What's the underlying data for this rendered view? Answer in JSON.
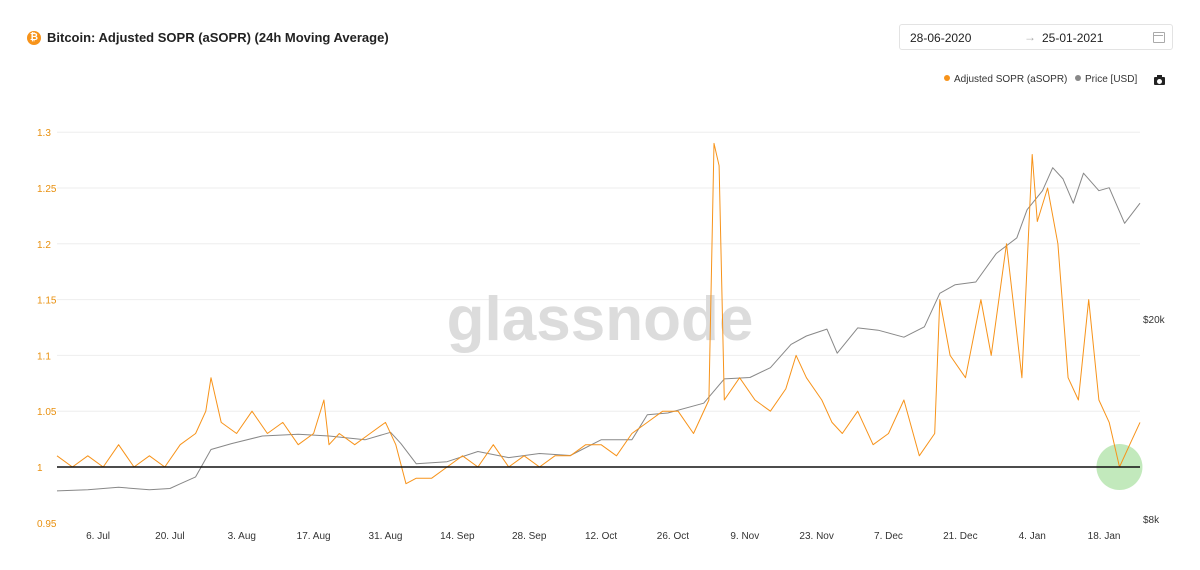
{
  "header": {
    "title": "Bitcoin: Adjusted SOPR (aSOPR) (24h Moving Average)",
    "icon": "bitcoin-icon",
    "date_from": "28-06-2020",
    "date_arrow": "→",
    "date_to": "25-01-2021",
    "calendar_icon": "calendar-icon"
  },
  "legend": {
    "items": [
      {
        "label": "Adjusted SOPR (aSOPR)",
        "color": "#f7931a"
      },
      {
        "label": "Price [USD]",
        "color": "#888888"
      }
    ],
    "camera_icon": "camera-icon"
  },
  "watermark": "glassnode",
  "chart_data": {
    "type": "line",
    "x_start": "2020-06-28",
    "x_end": "2021-01-25",
    "x_tick_labels": [
      "6. Jul",
      "20. Jul",
      "3. Aug",
      "17. Aug",
      "31. Aug",
      "14. Sep",
      "28. Sep",
      "12. Oct",
      "26. Oct",
      "9. Nov",
      "23. Nov",
      "7. Dec",
      "21. Dec",
      "4. Jan",
      "18. Jan"
    ],
    "y_left_ticks": [
      "1.3",
      "1.25",
      "1.2",
      "1.15",
      "1.1",
      "1.05",
      "1",
      "0.95"
    ],
    "y_left_range": [
      0.95,
      1.3
    ],
    "y_right_ticks": [
      "$20k",
      "$8k"
    ],
    "y_right_log_scale": true,
    "reference_line": 1,
    "grid": "horizontal",
    "legend_position": "top-right",
    "highlight": {
      "date": "2021-01-21",
      "value": 1.0,
      "color": "#a8e0a0"
    },
    "series": [
      {
        "name": "Adjusted SOPR (aSOPR)",
        "color": "#f7931a",
        "axis": "left",
        "x": [
          "2020-06-28",
          "2020-07-01",
          "2020-07-04",
          "2020-07-07",
          "2020-07-10",
          "2020-07-13",
          "2020-07-16",
          "2020-07-19",
          "2020-07-22",
          "2020-07-25",
          "2020-07-27",
          "2020-07-28",
          "2020-07-30",
          "2020-08-02",
          "2020-08-05",
          "2020-08-08",
          "2020-08-11",
          "2020-08-14",
          "2020-08-17",
          "2020-08-19",
          "2020-08-20",
          "2020-08-22",
          "2020-08-25",
          "2020-08-28",
          "2020-08-31",
          "2020-09-02",
          "2020-09-04",
          "2020-09-06",
          "2020-09-09",
          "2020-09-12",
          "2020-09-15",
          "2020-09-18",
          "2020-09-21",
          "2020-09-24",
          "2020-09-27",
          "2020-09-30",
          "2020-10-03",
          "2020-10-06",
          "2020-10-09",
          "2020-10-12",
          "2020-10-15",
          "2020-10-18",
          "2020-10-21",
          "2020-10-24",
          "2020-10-27",
          "2020-10-30",
          "2020-11-02",
          "2020-11-03",
          "2020-11-04",
          "2020-11-05",
          "2020-11-08",
          "2020-11-11",
          "2020-11-14",
          "2020-11-17",
          "2020-11-19",
          "2020-11-21",
          "2020-11-24",
          "2020-11-26",
          "2020-11-28",
          "2020-12-01",
          "2020-12-04",
          "2020-12-07",
          "2020-12-10",
          "2020-12-13",
          "2020-12-16",
          "2020-12-17",
          "2020-12-19",
          "2020-12-22",
          "2020-12-25",
          "2020-12-27",
          "2020-12-30",
          "2021-01-02",
          "2021-01-04",
          "2021-01-05",
          "2021-01-07",
          "2021-01-09",
          "2021-01-11",
          "2021-01-13",
          "2021-01-15",
          "2021-01-17",
          "2021-01-19",
          "2021-01-21",
          "2021-01-23",
          "2021-01-25"
        ],
        "values": [
          1.01,
          1.0,
          1.01,
          1.0,
          1.02,
          1.0,
          1.01,
          1.0,
          1.02,
          1.03,
          1.05,
          1.08,
          1.04,
          1.03,
          1.05,
          1.03,
          1.04,
          1.02,
          1.03,
          1.06,
          1.02,
          1.03,
          1.02,
          1.03,
          1.04,
          1.02,
          0.985,
          0.99,
          0.99,
          1.0,
          1.01,
          1.0,
          1.02,
          1.0,
          1.01,
          1.0,
          1.01,
          1.01,
          1.02,
          1.02,
          1.01,
          1.03,
          1.04,
          1.05,
          1.05,
          1.03,
          1.06,
          1.29,
          1.27,
          1.06,
          1.08,
          1.06,
          1.05,
          1.07,
          1.1,
          1.08,
          1.06,
          1.04,
          1.03,
          1.05,
          1.02,
          1.03,
          1.06,
          1.01,
          1.03,
          1.15,
          1.1,
          1.08,
          1.15,
          1.1,
          1.2,
          1.08,
          1.28,
          1.22,
          1.25,
          1.2,
          1.08,
          1.06,
          1.15,
          1.06,
          1.04,
          1.0,
          1.02,
          1.04
        ]
      },
      {
        "name": "Price [USD]",
        "color": "#888888",
        "axis": "right",
        "x": [
          "2020-06-28",
          "2020-07-04",
          "2020-07-10",
          "2020-07-16",
          "2020-07-20",
          "2020-07-22",
          "2020-07-25",
          "2020-07-28",
          "2020-08-01",
          "2020-08-07",
          "2020-08-14",
          "2020-08-20",
          "2020-08-27",
          "2020-09-01",
          "2020-09-03",
          "2020-09-06",
          "2020-09-12",
          "2020-09-18",
          "2020-09-24",
          "2020-09-30",
          "2020-10-06",
          "2020-10-12",
          "2020-10-18",
          "2020-10-21",
          "2020-10-25",
          "2020-11-01",
          "2020-11-05",
          "2020-11-10",
          "2020-11-14",
          "2020-11-18",
          "2020-11-21",
          "2020-11-25",
          "2020-11-27",
          "2020-12-01",
          "2020-12-05",
          "2020-12-10",
          "2020-12-14",
          "2020-12-17",
          "2020-12-20",
          "2020-12-24",
          "2020-12-28",
          "2021-01-01",
          "2021-01-03",
          "2021-01-06",
          "2021-01-08",
          "2021-01-10",
          "2021-01-12",
          "2021-01-14",
          "2021-01-17",
          "2021-01-19",
          "2021-01-22",
          "2021-01-25"
        ],
        "values": [
          9100,
          9150,
          9250,
          9150,
          9200,
          9400,
          9700,
          11000,
          11300,
          11700,
          11800,
          11700,
          11500,
          11900,
          11300,
          10300,
          10400,
          10900,
          10600,
          10800,
          10700,
          11500,
          11500,
          12900,
          13000,
          13600,
          15200,
          15300,
          16000,
          17800,
          18500,
          19100,
          17100,
          19200,
          19000,
          18400,
          19300,
          22500,
          23400,
          23700,
          27000,
          29000,
          33000,
          36000,
          40000,
          38000,
          34000,
          39000,
          36000,
          36500,
          31000,
          34000
        ]
      }
    ]
  }
}
